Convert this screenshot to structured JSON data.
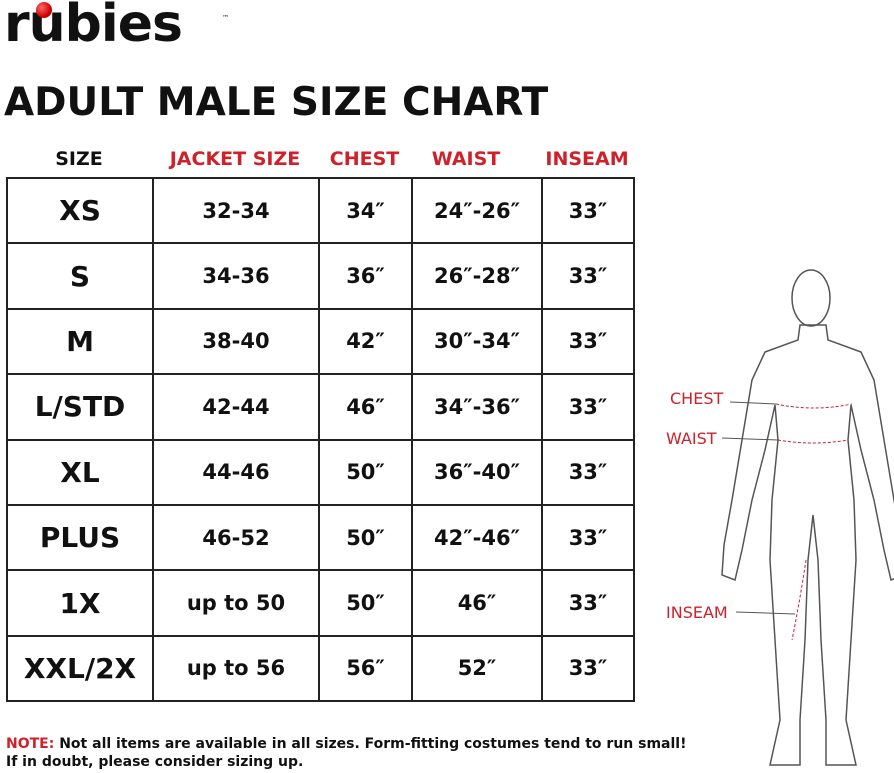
{
  "logo": {
    "text": "rubies",
    "trademark": "™"
  },
  "title": "ADULT MALE SIZE CHART",
  "table": {
    "headers": [
      "SIZE",
      "JACKET SIZE",
      "CHEST",
      "WAIST",
      "INSEAM"
    ],
    "rows": [
      [
        "XS",
        "32-34",
        "34″",
        "24″-26″",
        "33″"
      ],
      [
        "S",
        "34-36",
        "36″",
        "26″-28″",
        "33″"
      ],
      [
        "M",
        "38-40",
        "42″",
        "30″-34″",
        "33″"
      ],
      [
        "L/STD",
        "42-44",
        "46″",
        "34″-36″",
        "33″"
      ],
      [
        "XL",
        "44-46",
        "50″",
        "36″-40″",
        "33″"
      ],
      [
        "PLUS",
        "46-52",
        "50″",
        "42″-46″",
        "33″"
      ],
      [
        "1X",
        "up to 50",
        "50″",
        "46″",
        "33″"
      ],
      [
        "XXL/2X",
        "up to 56",
        "56″",
        "52″",
        "33″"
      ]
    ]
  },
  "figure": {
    "labels": [
      "CHEST",
      "WAIST",
      "INSEAM"
    ]
  },
  "note": {
    "label": "NOTE:",
    "lines": [
      "Not all items are available in all sizes. Form-fitting costumes tend to run small!",
      "If in doubt, please consider sizing up."
    ]
  }
}
